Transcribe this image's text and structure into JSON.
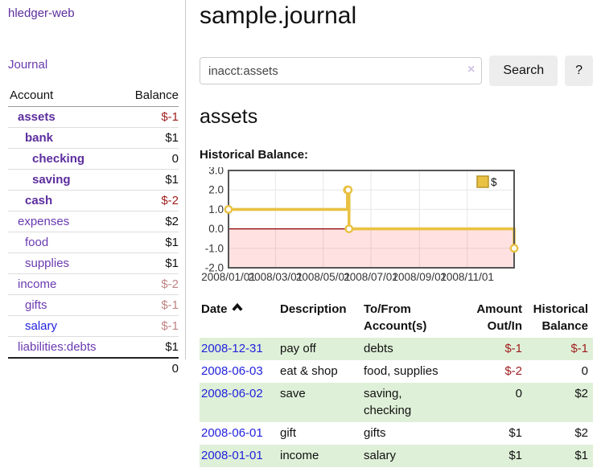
{
  "colors": {
    "accent_purple": "#5c2d9e",
    "link_blue": "#2222dd",
    "negative_red": "#9e1d1d",
    "faded_negative_red": "#c08585",
    "row_stripe_green": "#dff0d8",
    "chart_line_gold": "#e9c143",
    "chart_zero_line_red": "#8b0000",
    "chart_negative_fill_pink": "#fcdada",
    "chart_border_gray": "#555555",
    "button_bg": "#ededed"
  },
  "sidebar": {
    "app_title": "hledger-web",
    "journal_link": "Journal",
    "accounts": {
      "col_account": "Account",
      "col_balance": "Balance",
      "rows": [
        {
          "name": "assets",
          "depth": 1,
          "bold": true,
          "balance": "$-1",
          "neg": true
        },
        {
          "name": "bank",
          "depth": 2,
          "bold": true,
          "balance": "$1"
        },
        {
          "name": "checking",
          "depth": 3,
          "bold": true,
          "balance": "0"
        },
        {
          "name": "saving",
          "depth": 3,
          "bold": true,
          "balance": "$1"
        },
        {
          "name": "cash",
          "depth": 2,
          "bold": true,
          "balance": "$-2",
          "neg": true
        },
        {
          "name": "expenses",
          "depth": 1,
          "balance": "$2"
        },
        {
          "name": "food",
          "depth": 2,
          "balance": "$1"
        },
        {
          "name": "supplies",
          "depth": 2,
          "balance": "$1"
        },
        {
          "name": "income",
          "depth": 1,
          "balance": "$-2",
          "faded": true
        },
        {
          "name": "gifts",
          "depth": 2,
          "balance": "$-1",
          "faded": true
        },
        {
          "name": "salary",
          "depth": 2,
          "blue": true,
          "balance": "$-1",
          "faded": true
        },
        {
          "name": "liabilities:debts",
          "depth": 1,
          "balance": "$1"
        }
      ],
      "total": "0"
    }
  },
  "main": {
    "title": "sample.journal",
    "search": {
      "value": "inacct:assets",
      "clear_icon": "×",
      "button": "Search",
      "help_button": "?"
    },
    "heading": "assets",
    "chart_title": "Historical Balance:"
  },
  "chart_data": {
    "type": "line",
    "step": true,
    "title": "Historical Balance",
    "legend": [
      {
        "label": "$",
        "color": "#e9c143"
      }
    ],
    "legend_position": "top-right",
    "grid": true,
    "negative_region_shaded": true,
    "ylim": [
      -2,
      3
    ],
    "y_ticks": [
      "3.0",
      "2.0",
      "1.0",
      "0.0",
      "-1.0",
      "-2.0"
    ],
    "y_tick_values": [
      3,
      2,
      1,
      0,
      -1,
      -2
    ],
    "x_range_days": [
      0,
      365
    ],
    "x_ticks": [
      {
        "label": "2008/01/01",
        "day": 0
      },
      {
        "label": "2008/03/01",
        "day": 60
      },
      {
        "label": "2008/05/01",
        "day": 121
      },
      {
        "label": "2008/07/01",
        "day": 182
      },
      {
        "label": "2008/09/01",
        "day": 244
      },
      {
        "label": "2008/11/01",
        "day": 305
      }
    ],
    "series": [
      {
        "name": "$",
        "points": [
          {
            "date": "2008-01-01",
            "day": 0,
            "value": 1
          },
          {
            "date": "2008-06-01",
            "day": 152,
            "value": 2
          },
          {
            "date": "2008-06-02",
            "day": 153,
            "value": 2
          },
          {
            "date": "2008-06-03",
            "day": 154,
            "value": 0
          },
          {
            "date": "2008-12-31",
            "day": 365,
            "value": -1
          }
        ]
      }
    ]
  },
  "register": {
    "headers": [
      {
        "lines": [
          "Date"
        ],
        "sorted": "asc",
        "align": "left"
      },
      {
        "lines": [
          "Description"
        ],
        "align": "left"
      },
      {
        "lines": [
          "To/From",
          "Account(s)"
        ],
        "align": "left"
      },
      {
        "lines": [
          "Amount",
          "Out/In"
        ],
        "align": "right"
      },
      {
        "lines": [
          "Historical",
          "Balance"
        ],
        "align": "right"
      }
    ],
    "rows": [
      {
        "date": "2008-12-31",
        "description": "pay off",
        "accounts": "debts",
        "amount": "$-1",
        "amount_neg": true,
        "balance": "$-1",
        "balance_neg": true,
        "stripe": true
      },
      {
        "date": "2008-06-03",
        "description": "eat & shop",
        "accounts": "food, supplies",
        "amount": "$-2",
        "amount_neg": true,
        "balance": "0",
        "stripe": false
      },
      {
        "date": "2008-06-02",
        "description": "save",
        "accounts": "saving, checking",
        "amount": "0",
        "balance": "$2",
        "stripe": true
      },
      {
        "date": "2008-06-01",
        "description": "gift",
        "accounts": "gifts",
        "amount": "$1",
        "balance": "$2",
        "stripe": false
      },
      {
        "date": "2008-01-01",
        "description": "income",
        "accounts": "salary",
        "amount": "$1",
        "balance": "$1",
        "stripe": true
      }
    ]
  }
}
